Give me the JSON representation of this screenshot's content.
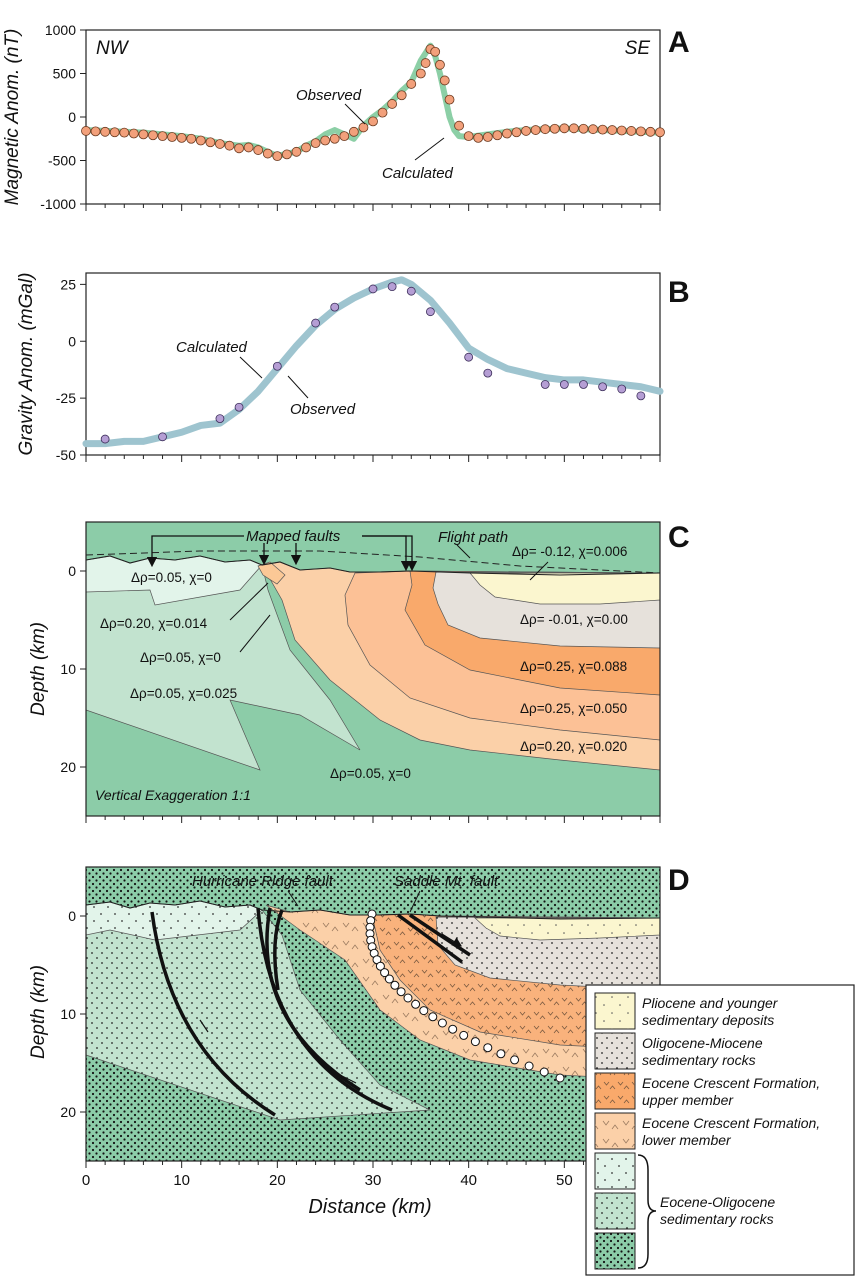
{
  "panels": {
    "A": {
      "letter": "A",
      "left_label": "NW",
      "right_label": "SE",
      "ylabel": "Magnetic Anom. (nT)",
      "observed_label": "Observed",
      "calculated_label": "Calculated"
    },
    "B": {
      "letter": "B",
      "ylabel": "Gravity Anom. (mGal)",
      "observed_label": "Observed",
      "calculated_label": "Calculated"
    },
    "C": {
      "letter": "C",
      "ylabel": "Depth (km)",
      "mapped_faults_label": "Mapped faults",
      "flight_path_label": "Flight path",
      "vertical_exaggeration": "Vertical Exaggeration 1:1",
      "units": [
        "Δρ=0.05, χ=0",
        "Δρ=0.20, χ=0.014",
        "Δρ=0.05, χ=0",
        "Δρ=0.05, χ=0.025",
        "Δρ=0.05, χ=0",
        "Δρ= -0.12, χ=0.006",
        "Δρ= -0.01, χ=0.00",
        "Δρ=0.25, χ=0.088",
        "Δρ=0.25, χ=0.050",
        "Δρ=0.20, χ=0.020"
      ]
    },
    "D": {
      "letter": "D",
      "ylabel": "Depth (km)",
      "xlabel": "Distance (km)",
      "hurricane_ridge_label": "Hurricane Ridge fault",
      "saddle_mt_label": "Saddle Mt. fault"
    }
  },
  "legend": {
    "items": [
      {
        "line1": "Pliocene and younger",
        "line2": "sedimentary deposits",
        "color": "#fbf6cf"
      },
      {
        "line1": "Oligocene-Miocene",
        "line2": "sedimentary rocks",
        "color": "#e6e1db"
      },
      {
        "line1": "Eocene Crescent Formation,",
        "line2": "upper member",
        "color": "#f9a96b"
      },
      {
        "line1": "Eocene Crescent Formation,",
        "line2": "lower member",
        "color": "#fbd0a8"
      }
    ],
    "green_group": [
      "#e2f4ea",
      "#c2e3cf",
      "#8ccca8"
    ],
    "green_label_line1": "Eocene-Oligocene",
    "green_label_line2": "sedimentary rocks"
  },
  "chart_data": [
    {
      "type": "line",
      "panel": "A",
      "title": "",
      "xlabel": "",
      "ylabel": "Magnetic Anom. (nT)",
      "xlim": [
        0,
        60
      ],
      "ylim": [
        -1000,
        1000
      ],
      "yticks": [
        -1000,
        -500,
        0,
        500,
        1000
      ],
      "series": [
        {
          "name": "Calculated",
          "color": "#8ccfa6",
          "x": [
            0,
            2,
            4,
            6,
            8,
            10,
            12,
            14,
            16,
            17,
            18,
            19,
            20,
            21,
            22,
            23,
            24,
            25,
            26,
            27,
            28,
            29,
            30,
            31,
            32,
            33,
            34,
            35,
            36,
            36.5,
            37,
            37.5,
            38,
            38.5,
            39,
            40,
            42,
            44,
            46,
            48,
            50,
            52,
            54,
            56,
            58,
            60
          ],
          "y": [
            -150,
            -160,
            -170,
            -180,
            -200,
            -220,
            -250,
            -300,
            -330,
            -320,
            -350,
            -400,
            -450,
            -420,
            -400,
            -330,
            -280,
            -200,
            -150,
            -200,
            -250,
            -100,
            0,
            80,
            180,
            300,
            400,
            650,
            820,
            700,
            500,
            250,
            0,
            -150,
            -220,
            -230,
            -200,
            -170,
            -150,
            -140,
            -130,
            -140,
            -150,
            -160,
            -170,
            -180
          ]
        },
        {
          "name": "Observed",
          "color": "#f2a07b",
          "x": [
            0,
            1,
            2,
            3,
            4,
            5,
            6,
            7,
            8,
            9,
            10,
            11,
            12,
            13,
            14,
            15,
            16,
            17,
            18,
            19,
            20,
            21,
            22,
            23,
            24,
            25,
            26,
            27,
            28,
            29,
            30,
            31,
            32,
            33,
            34,
            35,
            35.5,
            36,
            36.5,
            37,
            37.5,
            38,
            39,
            40,
            41,
            42,
            43,
            44,
            45,
            46,
            47,
            48,
            49,
            50,
            51,
            52,
            53,
            54,
            55,
            56,
            57,
            58,
            59,
            60
          ],
          "y": [
            -160,
            -165,
            -170,
            -175,
            -180,
            -190,
            -200,
            -210,
            -220,
            -230,
            -240,
            -250,
            -270,
            -290,
            -310,
            -330,
            -360,
            -350,
            -380,
            -420,
            -450,
            -430,
            -400,
            -350,
            -300,
            -270,
            -250,
            -220,
            -170,
            -120,
            -50,
            50,
            150,
            250,
            380,
            500,
            620,
            780,
            750,
            600,
            420,
            200,
            -100,
            -220,
            -240,
            -230,
            -210,
            -190,
            -175,
            -160,
            -150,
            -140,
            -135,
            -130,
            -130,
            -135,
            -140,
            -145,
            -150,
            -155,
            -160,
            -165,
            -170,
            -175
          ]
        }
      ]
    },
    {
      "type": "line",
      "panel": "B",
      "title": "",
      "xlabel": "",
      "ylabel": "Gravity Anom. (mGal)",
      "xlim": [
        0,
        60
      ],
      "ylim": [
        -50,
        30
      ],
      "yticks": [
        -50,
        -25,
        0,
        25
      ],
      "series": [
        {
          "name": "Calculated",
          "color": "#9ec4cf",
          "x": [
            0,
            2,
            4,
            6,
            8,
            10,
            12,
            14,
            16,
            18,
            20,
            22,
            24,
            26,
            28,
            30,
            32,
            33,
            34,
            36,
            38,
            40,
            42,
            44,
            46,
            48,
            50,
            52,
            54,
            56,
            58,
            60
          ],
          "y": [
            -45,
            -45,
            -44,
            -44,
            -42,
            -40,
            -37,
            -36,
            -30,
            -22,
            -12,
            -2,
            7,
            14,
            19,
            23,
            26,
            27,
            25,
            18,
            8,
            -3,
            -8,
            -12,
            -14,
            -16,
            -17,
            -17,
            -18,
            -19,
            -20,
            -22
          ]
        },
        {
          "name": "Observed",
          "color": "#b59ed4",
          "x": [
            2,
            8,
            14,
            16,
            20,
            24,
            26,
            30,
            32,
            34,
            36,
            40,
            42,
            48,
            50,
            52,
            54,
            56,
            58
          ],
          "y": [
            -43,
            -42,
            -34,
            -29,
            -11,
            8,
            15,
            23,
            24,
            22,
            13,
            -7,
            -14,
            -19,
            -19,
            -19,
            -20,
            -21,
            -24
          ]
        }
      ]
    },
    {
      "type": "cross-section",
      "panel": "C",
      "xlim": [
        0,
        60
      ],
      "ylim_depth_km": [
        25,
        -5
      ],
      "yticks": [
        0,
        10,
        20
      ]
    },
    {
      "type": "cross-section",
      "panel": "D",
      "xlabel": "Distance (km)",
      "xlim": [
        0,
        60
      ],
      "xticks": [
        0,
        10,
        20,
        30,
        40,
        50
      ],
      "ylim_depth_km": [
        25,
        -5
      ],
      "yticks": [
        0,
        10,
        20
      ]
    }
  ]
}
